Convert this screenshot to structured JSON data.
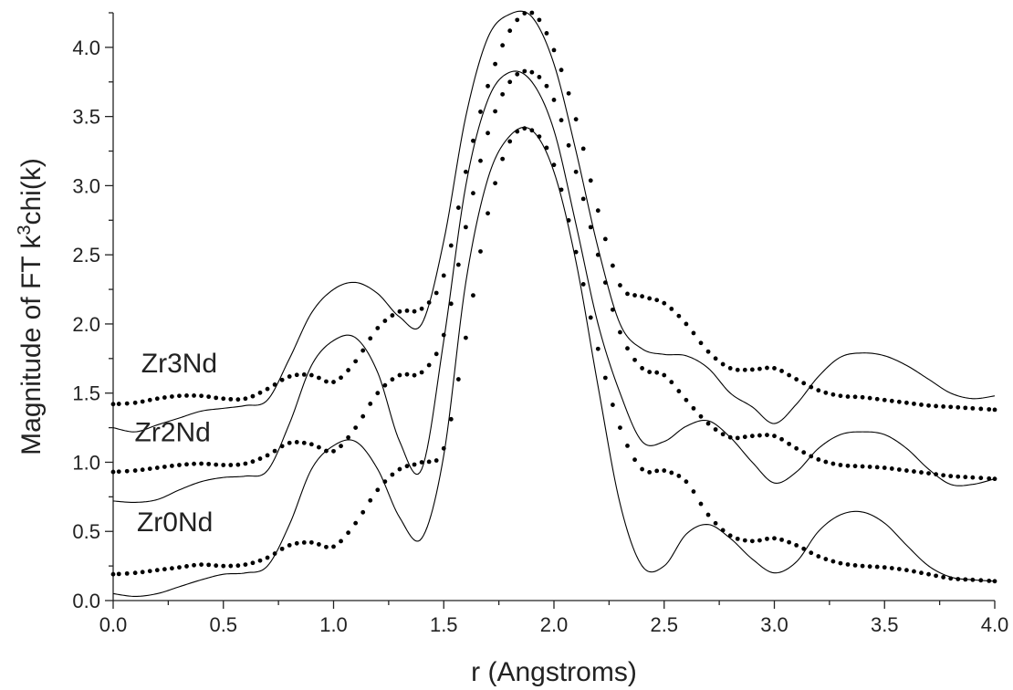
{
  "chart_data": {
    "type": "line",
    "title": "",
    "xlabel": "r (Angstroms)",
    "ylabel_prefix": "Magnitude of FT k",
    "ylabel_sup": "3",
    "ylabel_suffix": "chi(k)",
    "xlim": [
      0.0,
      4.0
    ],
    "ylim": [
      0.0,
      4.25
    ],
    "x_ticks": [
      0.0,
      0.5,
      1.0,
      1.5,
      2.0,
      2.5,
      3.0,
      3.5,
      4.0
    ],
    "x_tick_labels": [
      "0.0",
      "0.5",
      "1.0",
      "1.5",
      "2.0",
      "2.5",
      "3.0",
      "3.5",
      "4.0"
    ],
    "y_ticks": [
      0.0,
      0.5,
      1.0,
      1.5,
      2.0,
      2.5,
      3.0,
      3.5,
      4.0
    ],
    "y_tick_labels": [
      "0.0",
      "0.5",
      "1.0",
      "1.5",
      "2.0",
      "2.5",
      "3.0",
      "3.5",
      "4.0"
    ],
    "grid": false,
    "legend": "none",
    "series_style": {
      "fit": "solid-thin-line",
      "data": "dotted",
      "color": "#000000"
    },
    "series": [
      {
        "name": "Zr3Nd",
        "label_pos": [
          0.3,
          1.65
        ],
        "data": {
          "x": [
            0.0,
            0.1,
            0.2,
            0.3,
            0.4,
            0.5,
            0.6,
            0.7,
            0.8,
            0.9,
            1.0,
            1.1,
            1.2,
            1.3,
            1.4,
            1.5,
            1.6,
            1.7,
            1.8,
            1.9,
            2.0,
            2.1,
            2.2,
            2.3,
            2.4,
            2.5,
            2.6,
            2.7,
            2.8,
            2.9,
            3.0,
            3.1,
            3.2,
            3.3,
            3.4,
            3.5,
            3.6,
            3.7,
            3.8,
            3.9,
            4.0
          ],
          "y": [
            1.42,
            1.43,
            1.46,
            1.48,
            1.48,
            1.46,
            1.46,
            1.53,
            1.62,
            1.63,
            1.58,
            1.73,
            1.97,
            2.09,
            2.11,
            2.35,
            3.1,
            3.72,
            4.12,
            4.25,
            3.98,
            3.48,
            2.82,
            2.28,
            2.2,
            2.15,
            2.0,
            1.8,
            1.68,
            1.67,
            1.68,
            1.6,
            1.52,
            1.48,
            1.47,
            1.45,
            1.43,
            1.41,
            1.4,
            1.39,
            1.38
          ]
        },
        "fit": {
          "x": [
            0.0,
            0.1,
            0.2,
            0.3,
            0.4,
            0.5,
            0.6,
            0.7,
            0.8,
            0.9,
            1.0,
            1.1,
            1.2,
            1.3,
            1.4,
            1.5,
            1.6,
            1.7,
            1.8,
            1.9,
            2.0,
            2.1,
            2.2,
            2.3,
            2.4,
            2.5,
            2.6,
            2.7,
            2.8,
            2.9,
            3.0,
            3.1,
            3.2,
            3.3,
            3.4,
            3.5,
            3.6,
            3.7,
            3.8,
            3.9,
            4.0
          ],
          "y": [
            1.25,
            1.22,
            1.27,
            1.32,
            1.37,
            1.39,
            1.41,
            1.45,
            1.75,
            2.08,
            2.25,
            2.3,
            2.22,
            2.05,
            2.0,
            2.6,
            3.5,
            4.07,
            4.24,
            4.22,
            3.88,
            3.25,
            2.55,
            2.0,
            1.82,
            1.78,
            1.77,
            1.68,
            1.5,
            1.4,
            1.28,
            1.42,
            1.62,
            1.76,
            1.79,
            1.77,
            1.7,
            1.6,
            1.5,
            1.46,
            1.48
          ]
        }
      },
      {
        "name": "Zr2Nd",
        "label_pos": [
          0.27,
          1.15
        ],
        "data": {
          "x": [
            0.0,
            0.1,
            0.2,
            0.3,
            0.4,
            0.5,
            0.6,
            0.7,
            0.8,
            0.9,
            1.0,
            1.1,
            1.2,
            1.3,
            1.4,
            1.5,
            1.6,
            1.7,
            1.8,
            1.9,
            2.0,
            2.1,
            2.2,
            2.3,
            2.4,
            2.5,
            2.6,
            2.7,
            2.8,
            2.9,
            3.0,
            3.1,
            3.2,
            3.3,
            3.4,
            3.5,
            3.6,
            3.7,
            3.8,
            3.9,
            4.0
          ],
          "y": [
            0.93,
            0.94,
            0.96,
            0.98,
            0.99,
            0.98,
            0.99,
            1.05,
            1.14,
            1.13,
            1.08,
            1.25,
            1.5,
            1.63,
            1.65,
            1.92,
            2.7,
            3.38,
            3.75,
            3.82,
            3.62,
            3.1,
            2.5,
            1.94,
            1.68,
            1.63,
            1.45,
            1.28,
            1.18,
            1.19,
            1.19,
            1.1,
            1.02,
            0.98,
            0.97,
            0.96,
            0.94,
            0.92,
            0.9,
            0.89,
            0.88
          ]
        },
        "fit": {
          "x": [
            0.0,
            0.1,
            0.2,
            0.3,
            0.4,
            0.5,
            0.6,
            0.7,
            0.8,
            0.9,
            1.0,
            1.1,
            1.2,
            1.3,
            1.4,
            1.5,
            1.6,
            1.7,
            1.8,
            1.9,
            2.0,
            2.1,
            2.2,
            2.3,
            2.4,
            2.5,
            2.6,
            2.7,
            2.8,
            2.9,
            3.0,
            3.1,
            3.2,
            3.3,
            3.4,
            3.5,
            3.6,
            3.7,
            3.8,
            3.9,
            4.0
          ],
          "y": [
            0.72,
            0.71,
            0.73,
            0.8,
            0.86,
            0.89,
            0.9,
            0.94,
            1.28,
            1.7,
            1.88,
            1.9,
            1.65,
            1.15,
            0.95,
            1.88,
            3.0,
            3.62,
            3.82,
            3.75,
            3.4,
            2.72,
            2.0,
            1.5,
            1.15,
            1.15,
            1.26,
            1.3,
            1.18,
            1.0,
            0.85,
            0.93,
            1.1,
            1.2,
            1.22,
            1.2,
            1.1,
            0.95,
            0.84,
            0.84,
            0.88
          ]
        }
      },
      {
        "name": "Zr0Nd",
        "label_pos": [
          0.28,
          0.5
        ],
        "data": {
          "x": [
            0.0,
            0.1,
            0.2,
            0.3,
            0.4,
            0.5,
            0.6,
            0.7,
            0.8,
            0.9,
            1.0,
            1.1,
            1.2,
            1.3,
            1.4,
            1.5,
            1.6,
            1.7,
            1.8,
            1.9,
            2.0,
            2.1,
            2.2,
            2.3,
            2.4,
            2.5,
            2.6,
            2.7,
            2.8,
            2.9,
            3.0,
            3.1,
            3.2,
            3.3,
            3.4,
            3.5,
            3.6,
            3.7,
            3.8,
            3.9,
            4.0
          ],
          "y": [
            0.19,
            0.2,
            0.22,
            0.24,
            0.26,
            0.25,
            0.26,
            0.31,
            0.4,
            0.42,
            0.39,
            0.56,
            0.8,
            0.95,
            1.0,
            1.1,
            1.9,
            2.8,
            3.32,
            3.4,
            3.15,
            2.52,
            1.82,
            1.25,
            0.95,
            0.94,
            0.86,
            0.62,
            0.47,
            0.43,
            0.45,
            0.4,
            0.32,
            0.27,
            0.25,
            0.24,
            0.22,
            0.19,
            0.16,
            0.15,
            0.14
          ]
        },
        "fit": {
          "x": [
            0.0,
            0.1,
            0.2,
            0.3,
            0.4,
            0.5,
            0.6,
            0.7,
            0.8,
            0.9,
            1.0,
            1.1,
            1.2,
            1.3,
            1.4,
            1.5,
            1.6,
            1.7,
            1.8,
            1.9,
            2.0,
            2.1,
            2.2,
            2.3,
            2.4,
            2.5,
            2.6,
            2.7,
            2.8,
            2.9,
            3.0,
            3.1,
            3.2,
            3.3,
            3.4,
            3.5,
            3.6,
            3.7,
            3.8,
            3.9,
            4.0
          ],
          "y": [
            0.05,
            0.03,
            0.05,
            0.1,
            0.15,
            0.19,
            0.2,
            0.25,
            0.55,
            0.95,
            1.12,
            1.15,
            0.95,
            0.6,
            0.45,
            1.05,
            2.3,
            3.05,
            3.36,
            3.4,
            3.1,
            2.45,
            1.55,
            0.7,
            0.25,
            0.25,
            0.48,
            0.55,
            0.45,
            0.3,
            0.2,
            0.28,
            0.5,
            0.62,
            0.64,
            0.56,
            0.4,
            0.25,
            0.17,
            0.15,
            0.14
          ]
        }
      }
    ]
  }
}
